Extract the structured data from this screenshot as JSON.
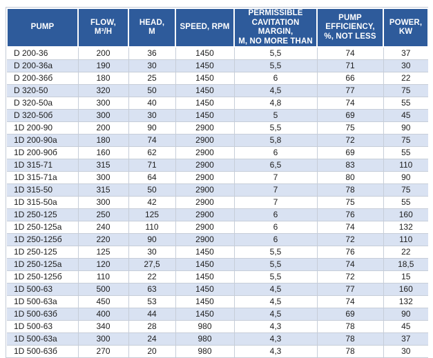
{
  "colors": {
    "header_bg": "#2e5b9b",
    "header_text": "#ffffff",
    "stripe_row_bg": "#d9e2f2",
    "plain_row_bg": "#ffffff",
    "grid_line": "#c6cdd8",
    "body_text": "#1c1c1c"
  },
  "table": {
    "columns": [
      {
        "key": "pump",
        "label": "PUMP"
      },
      {
        "key": "flow",
        "label": "FLOW,\nM³/H"
      },
      {
        "key": "head",
        "label": "HEAD,\nM"
      },
      {
        "key": "speed",
        "label": "SPEED, RPM"
      },
      {
        "key": "cavitation",
        "label": "PERMISSIBLE\nCAVITATION MARGIN,\nM, NO MORE THAN"
      },
      {
        "key": "efficiency",
        "label": "PUMP\nEFFICIENCY,\n%, NOT LESS"
      },
      {
        "key": "power",
        "label": "POWER,\nKW"
      }
    ],
    "rows": [
      {
        "pump": "D 200-36",
        "flow": "200",
        "head": "36",
        "speed": "1450",
        "cavitation": "5,5",
        "efficiency": "74",
        "power": "37"
      },
      {
        "pump": "D 200-36a",
        "flow": "190",
        "head": "30",
        "speed": "1450",
        "cavitation": "5,5",
        "efficiency": "71",
        "power": "30"
      },
      {
        "pump": "D 200-36б",
        "flow": "180",
        "head": "25",
        "speed": "1450",
        "cavitation": "6",
        "efficiency": "66",
        "power": "22"
      },
      {
        "pump": "D 320-50",
        "flow": "320",
        "head": "50",
        "speed": "1450",
        "cavitation": "4,5",
        "efficiency": "77",
        "power": "75"
      },
      {
        "pump": "D 320-50a",
        "flow": "300",
        "head": "40",
        "speed": "1450",
        "cavitation": "4,8",
        "efficiency": "74",
        "power": "55"
      },
      {
        "pump": "D 320-50б",
        "flow": "300",
        "head": "30",
        "speed": "1450",
        "cavitation": "5",
        "efficiency": "69",
        "power": "45"
      },
      {
        "pump": "1D 200-90",
        "flow": "200",
        "head": "90",
        "speed": "2900",
        "cavitation": "5,5",
        "efficiency": "75",
        "power": "90"
      },
      {
        "pump": "1D 200-90a",
        "flow": "180",
        "head": "74",
        "speed": "2900",
        "cavitation": "5,8",
        "efficiency": "72",
        "power": "75"
      },
      {
        "pump": "1D 200-90б",
        "flow": "160",
        "head": "62",
        "speed": "2900",
        "cavitation": "6",
        "efficiency": "69",
        "power": "55"
      },
      {
        "pump": "1D 315-71",
        "flow": "315",
        "head": "71",
        "speed": "2900",
        "cavitation": "6,5",
        "efficiency": "83",
        "power": "110"
      },
      {
        "pump": "1D 315-71a",
        "flow": "300",
        "head": "64",
        "speed": "2900",
        "cavitation": "7",
        "efficiency": "80",
        "power": "90"
      },
      {
        "pump": "1D 315-50",
        "flow": "315",
        "head": "50",
        "speed": "2900",
        "cavitation": "7",
        "efficiency": "78",
        "power": "75"
      },
      {
        "pump": "1D 315-50a",
        "flow": "300",
        "head": "42",
        "speed": "2900",
        "cavitation": "7",
        "efficiency": "75",
        "power": "55"
      },
      {
        "pump": "1D 250-125",
        "flow": "250",
        "head": "125",
        "speed": "2900",
        "cavitation": "6",
        "efficiency": "76",
        "power": "160"
      },
      {
        "pump": "1D 250-125a",
        "flow": "240",
        "head": "110",
        "speed": "2900",
        "cavitation": "6",
        "efficiency": "74",
        "power": "132"
      },
      {
        "pump": "1D 250-125б",
        "flow": "220",
        "head": "90",
        "speed": "2900",
        "cavitation": "6",
        "efficiency": "72",
        "power": "110"
      },
      {
        "pump": "1D 250-125",
        "flow": "125",
        "head": "30",
        "speed": "1450",
        "cavitation": "5,5",
        "efficiency": "76",
        "power": "22"
      },
      {
        "pump": "1D 250-125a",
        "flow": "120",
        "head": "27,5",
        "speed": "1450",
        "cavitation": "5,5",
        "efficiency": "74",
        "power": "18,5"
      },
      {
        "pump": "1D 250-125б",
        "flow": "110",
        "head": "22",
        "speed": "1450",
        "cavitation": "5,5",
        "efficiency": "72",
        "power": "15"
      },
      {
        "pump": "1D 500-63",
        "flow": "500",
        "head": "63",
        "speed": "1450",
        "cavitation": "4,5",
        "efficiency": "77",
        "power": "160"
      },
      {
        "pump": "1D 500-63a",
        "flow": "450",
        "head": "53",
        "speed": "1450",
        "cavitation": "4,5",
        "efficiency": "74",
        "power": "132"
      },
      {
        "pump": "1D 500-63б",
        "flow": "400",
        "head": "44",
        "speed": "1450",
        "cavitation": "4,5",
        "efficiency": "69",
        "power": "90"
      },
      {
        "pump": "1D 500-63",
        "flow": "340",
        "head": "28",
        "speed": "980",
        "cavitation": "4,3",
        "efficiency": "78",
        "power": "45"
      },
      {
        "pump": "1D 500-63a",
        "flow": "300",
        "head": "24",
        "speed": "980",
        "cavitation": "4,3",
        "efficiency": "78",
        "power": "37"
      },
      {
        "pump": "1D 500-63б",
        "flow": "270",
        "head": "20",
        "speed": "980",
        "cavitation": "4,3",
        "efficiency": "78",
        "power": "30"
      }
    ]
  }
}
